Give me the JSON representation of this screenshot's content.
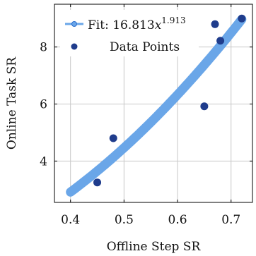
{
  "chart_data": {
    "type": "scatter",
    "xlabel": "Offline Step SR",
    "ylabel": "Online Task SR",
    "xlim": [
      0.37,
      0.74
    ],
    "ylim": [
      2.55,
      9.5
    ],
    "x_ticks": [
      0.4,
      0.5,
      0.6,
      0.7
    ],
    "x_tick_labels": [
      "0.4",
      "0.5",
      "0.6",
      "0.7"
    ],
    "y_ticks": [
      4,
      6,
      8
    ],
    "y_tick_labels": [
      "4",
      "6",
      "8"
    ],
    "grid": true,
    "legend_position": "top-left",
    "fit": {
      "name": "Fit: 16.813x^1.913",
      "legend_prefix": "Fit: 16.813",
      "legend_var": "x",
      "legend_exp": "1.913",
      "coefficient": 16.813,
      "exponent": 1.913,
      "x_range": [
        0.4,
        0.72
      ],
      "color": "#6aa6e8"
    },
    "points": {
      "name": "Data Points",
      "color": "#1f3c8c",
      "x": [
        0.45,
        0.48,
        0.65,
        0.67,
        0.68,
        0.72
      ],
      "y": [
        3.25,
        4.8,
        5.92,
        8.8,
        8.22,
        9.0
      ]
    }
  }
}
